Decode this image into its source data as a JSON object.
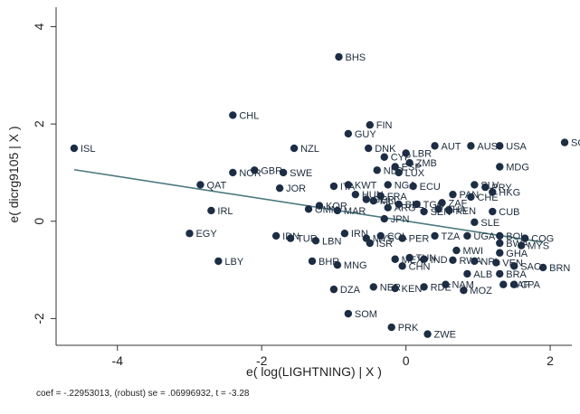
{
  "chart_data": {
    "type": "scatter",
    "xlabel": "e( log(LIGHTNING) | X )",
    "ylabel": "e( dicrg9105 | X )",
    "xlim": [
      -4.85,
      2.3
    ],
    "ylim": [
      -2.55,
      4.4
    ],
    "x_ticks": [
      -4,
      -2,
      0,
      2
    ],
    "y_ticks": [
      -2,
      0,
      2,
      4
    ],
    "x_tick_labels": [
      "-4",
      "-2",
      "0",
      "2"
    ],
    "y_tick_labels": [
      "-2",
      "0",
      "2",
      "4"
    ],
    "grid": false,
    "marker_color": "#1c2d44",
    "fit_line_color": "#4c7a80",
    "fit_line": {
      "x": [
        -4.6,
        1.9
      ],
      "y": [
        1.06,
        -0.43
      ]
    },
    "footnote": "coef = -.22953013, (robust) se = .06996932, t = -3.28",
    "points": [
      {
        "x": -0.93,
        "y": 3.38,
        "label": "BHS"
      },
      {
        "x": -2.4,
        "y": 2.18,
        "label": "CHL"
      },
      {
        "x": -0.5,
        "y": 1.98,
        "label": "FIN"
      },
      {
        "x": -0.8,
        "y": 1.8,
        "label": "GUY"
      },
      {
        "x": -4.6,
        "y": 1.5,
        "label": "ISL"
      },
      {
        "x": -1.55,
        "y": 1.5,
        "label": "NZL"
      },
      {
        "x": -0.52,
        "y": 1.5,
        "label": "DNK"
      },
      {
        "x": 0.0,
        "y": 1.4,
        "label": "LBR"
      },
      {
        "x": 0.4,
        "y": 1.55,
        "label": "AUT"
      },
      {
        "x": 0.9,
        "y": 1.55,
        "label": "AUS"
      },
      {
        "x": 1.3,
        "y": 1.55,
        "label": "USA"
      },
      {
        "x": 2.2,
        "y": 1.62,
        "label": "SGP"
      },
      {
        "x": -0.3,
        "y": 1.32,
        "label": "CYP"
      },
      {
        "x": 0.05,
        "y": 1.2,
        "label": "ZMB"
      },
      {
        "x": -0.15,
        "y": 1.12,
        "label": "ESP"
      },
      {
        "x": 1.3,
        "y": 1.12,
        "label": "MDG"
      },
      {
        "x": -2.1,
        "y": 1.05,
        "label": "GBR"
      },
      {
        "x": -2.4,
        "y": 1.0,
        "label": "NOR"
      },
      {
        "x": -1.7,
        "y": 1.0,
        "label": "SWE"
      },
      {
        "x": -0.4,
        "y": 1.05,
        "label": "NLD"
      },
      {
        "x": -0.1,
        "y": 1.0,
        "label": "LUX"
      },
      {
        "x": -2.85,
        "y": 0.75,
        "label": "QAT"
      },
      {
        "x": -1.75,
        "y": 0.68,
        "label": "JOR"
      },
      {
        "x": -0.8,
        "y": 0.75,
        "label": "KWT"
      },
      {
        "x": -1.0,
        "y": 0.72,
        "label": "ITA"
      },
      {
        "x": -0.25,
        "y": 0.75,
        "label": "NGA"
      },
      {
        "x": 0.1,
        "y": 0.72,
        "label": "ECU"
      },
      {
        "x": 0.95,
        "y": 0.75,
        "label": "SLV"
      },
      {
        "x": 1.1,
        "y": 0.7,
        "label": "PRY"
      },
      {
        "x": -0.7,
        "y": 0.55,
        "label": "HUN"
      },
      {
        "x": -0.35,
        "y": 0.52,
        "label": "FRA"
      },
      {
        "x": 0.65,
        "y": 0.55,
        "label": "PAN"
      },
      {
        "x": 0.9,
        "y": 0.5,
        "label": "CHE"
      },
      {
        "x": 1.2,
        "y": 0.6,
        "label": "HKG"
      },
      {
        "x": -0.55,
        "y": 0.45,
        "label": "GER"
      },
      {
        "x": -0.45,
        "y": 0.42,
        "label": "MLI"
      },
      {
        "x": -0.1,
        "y": 0.35,
        "label": "BEL"
      },
      {
        "x": 0.15,
        "y": 0.35,
        "label": "TGO"
      },
      {
        "x": 0.5,
        "y": 0.38,
        "label": "ZAF"
      },
      {
        "x": -1.2,
        "y": 0.32,
        "label": "KOR"
      },
      {
        "x": -1.35,
        "y": 0.25,
        "label": "OMN"
      },
      {
        "x": -0.95,
        "y": 0.22,
        "label": "MAR"
      },
      {
        "x": -0.25,
        "y": 0.28,
        "label": "ARG"
      },
      {
        "x": 0.25,
        "y": 0.2,
        "label": "SEN"
      },
      {
        "x": 0.6,
        "y": 0.22,
        "label": "KEN"
      },
      {
        "x": 0.45,
        "y": 0.25,
        "label": "GHA"
      },
      {
        "x": 1.2,
        "y": 0.2,
        "label": "CUB"
      },
      {
        "x": -2.7,
        "y": 0.22,
        "label": "IRL"
      },
      {
        "x": -0.3,
        "y": 0.05,
        "label": "JPN"
      },
      {
        "x": 0.95,
        "y": -0.02,
        "label": "SLE"
      },
      {
        "x": -0.85,
        "y": -0.25,
        "label": "IRN"
      },
      {
        "x": -3.0,
        "y": -0.25,
        "label": "EGY"
      },
      {
        "x": -1.8,
        "y": -0.3,
        "label": "IDN"
      },
      {
        "x": -1.6,
        "y": -0.35,
        "label": "TUR"
      },
      {
        "x": -1.25,
        "y": -0.4,
        "label": "LBN"
      },
      {
        "x": -0.55,
        "y": -0.35,
        "label": "MYS"
      },
      {
        "x": -0.35,
        "y": -0.3,
        "label": "COL"
      },
      {
        "x": -0.05,
        "y": -0.35,
        "label": "PER"
      },
      {
        "x": 0.4,
        "y": -0.3,
        "label": "TZA"
      },
      {
        "x": 0.85,
        "y": -0.3,
        "label": "UGA"
      },
      {
        "x": 1.3,
        "y": -0.3,
        "label": "BOL"
      },
      {
        "x": 1.65,
        "y": -0.35,
        "label": "COG"
      },
      {
        "x": -0.5,
        "y": -0.45,
        "label": "ISR"
      },
      {
        "x": 1.3,
        "y": -0.45,
        "label": "BWA"
      },
      {
        "x": 1.6,
        "y": -0.5,
        "label": "MYS"
      },
      {
        "x": 0.7,
        "y": -0.6,
        "label": "MWI"
      },
      {
        "x": 1.3,
        "y": -0.65,
        "label": "GHA"
      },
      {
        "x": -1.3,
        "y": -0.82,
        "label": "BHR"
      },
      {
        "x": -0.95,
        "y": -0.9,
        "label": "MNG"
      },
      {
        "x": -0.15,
        "y": -0.78,
        "label": "MEX"
      },
      {
        "x": 0.05,
        "y": -0.75,
        "label": "TUN"
      },
      {
        "x": 0.25,
        "y": -0.78,
        "label": "IND"
      },
      {
        "x": 0.65,
        "y": -0.8,
        "label": "RWA"
      },
      {
        "x": 0.95,
        "y": -0.82,
        "label": "NPL"
      },
      {
        "x": 1.25,
        "y": -0.85,
        "label": "VEN"
      },
      {
        "x": -0.05,
        "y": -0.92,
        "label": "CHN"
      },
      {
        "x": 1.5,
        "y": -0.92,
        "label": "SAC"
      },
      {
        "x": 1.9,
        "y": -0.95,
        "label": "BRN"
      },
      {
        "x": 0.85,
        "y": -1.08,
        "label": "ALB"
      },
      {
        "x": 1.3,
        "y": -1.08,
        "label": "BRA"
      },
      {
        "x": -1.0,
        "y": -1.4,
        "label": "DZA"
      },
      {
        "x": -0.45,
        "y": -1.35,
        "label": "NER"
      },
      {
        "x": -0.15,
        "y": -1.38,
        "label": "KEN"
      },
      {
        "x": 0.25,
        "y": -1.35,
        "label": "RDE"
      },
      {
        "x": 0.55,
        "y": -1.3,
        "label": "NAM"
      },
      {
        "x": 0.8,
        "y": -1.42,
        "label": "MOZ"
      },
      {
        "x": 1.35,
        "y": -1.3,
        "label": "CAF"
      },
      {
        "x": 1.5,
        "y": -1.3,
        "label": "CPA"
      },
      {
        "x": -0.8,
        "y": -1.9,
        "label": "SOM"
      },
      {
        "x": -0.2,
        "y": -2.18,
        "label": "PRK"
      },
      {
        "x": 0.3,
        "y": -2.32,
        "label": "ZWE"
      },
      {
        "x": -2.6,
        "y": -0.82,
        "label": "LBY"
      }
    ]
  }
}
